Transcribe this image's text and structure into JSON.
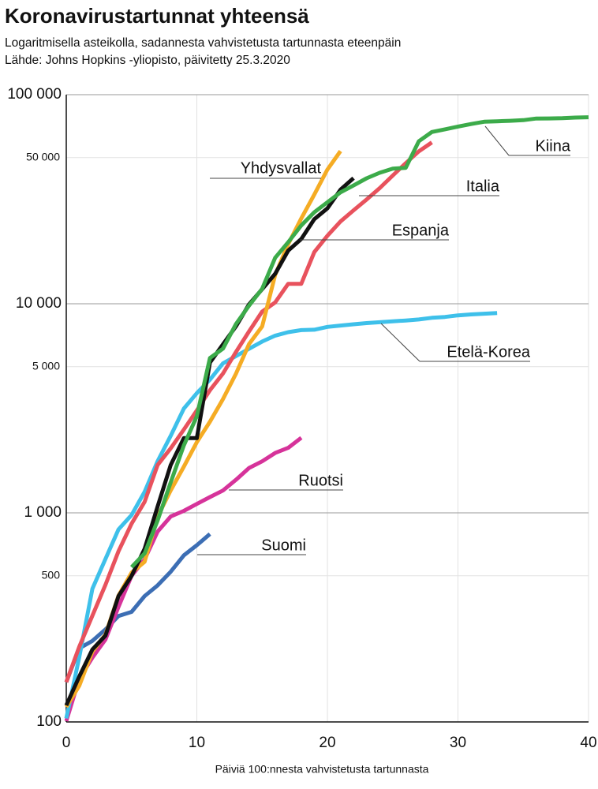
{
  "chart_data": {
    "type": "line",
    "title": "Koronavirustartunnat yhteensä",
    "subtitle": [
      "Logaritmisella asteikolla, sadannesta vahvistetusta tartunnasta eteenpäin",
      "Lähde: Johns Hopkins -yliopisto, päivitetty 25.3.2020"
    ],
    "x_label": "Päiviä 100:nnesta vahvistetusta tartunnasta",
    "log_y": true,
    "grid": true,
    "xlim": [
      0,
      40
    ],
    "xticks": [
      0,
      10,
      20,
      30,
      40
    ],
    "ylim": [
      100,
      100000
    ],
    "yticks": [
      100,
      500,
      {
        "value": 1000,
        "label": "1 000"
      },
      {
        "value": 5000,
        "label": "5 000"
      },
      {
        "value": 10000,
        "label": "10 000"
      },
      {
        "value": 50000,
        "label": "50 000"
      },
      {
        "value": 100000,
        "label": "100 000"
      }
    ],
    "x": [
      0,
      1,
      2,
      3,
      4,
      5,
      6,
      7,
      8,
      9,
      10,
      11,
      12,
      13,
      14,
      15,
      16,
      17,
      18,
      19,
      20,
      21,
      22,
      23,
      24,
      25,
      26,
      27,
      28,
      29,
      30,
      31,
      32,
      33,
      34,
      35,
      36,
      37,
      38,
      39,
      40
    ],
    "series": [
      {
        "name": "Suomi",
        "color": "#3c6eb4",
        "values": [
          155,
          225,
          244,
          277,
          321,
          336,
          400,
          450,
          523,
          626,
          700,
          792,
          null,
          null,
          null,
          null,
          null,
          null,
          null,
          null,
          null,
          null,
          null,
          null,
          null,
          null,
          null,
          null,
          null,
          null,
          null,
          null,
          null,
          null,
          null,
          null,
          null,
          null,
          null,
          null,
          null
        ]
      },
      {
        "name": "Ruotsi",
        "color": "#d6339a",
        "values": [
          101,
          161,
          203,
          248,
          355,
          500,
          599,
          814,
          961,
          1022,
          1103,
          1190,
          1279,
          1439,
          1639,
          1763,
          1934,
          2046,
          2286,
          null,
          null,
          null,
          null,
          null,
          null,
          null,
          null,
          null,
          null,
          null,
          null,
          null,
          null,
          null,
          null,
          null,
          null,
          null,
          null,
          null,
          null
        ]
      },
      {
        "name": "Etelä-Korea",
        "color": "#3ec0ea",
        "values": [
          104,
          204,
          433,
          602,
          833,
          977,
          1261,
          1766,
          2337,
          3150,
          3736,
          4335,
          5186,
          5621,
          6088,
          6593,
          7041,
          7314,
          7478,
          7513,
          7755,
          7869,
          7979,
          8086,
          8162,
          8236,
          8320,
          8413,
          8565,
          8652,
          8799,
          8897,
          8961,
          9037,
          null,
          null,
          null,
          null,
          null,
          null,
          null
        ]
      },
      {
        "name": "Italia",
        "color": "#e8525d",
        "values": [
          155,
          229,
          322,
          453,
          655,
          888,
          1128,
          1694,
          2036,
          2502,
          3089,
          3858,
          4636,
          5883,
          7375,
          9172,
          10149,
          12462,
          12462,
          17660,
          21157,
          24747,
          27980,
          31506,
          35713,
          41035,
          47021,
          53578,
          59138,
          null,
          null,
          null,
          null,
          null,
          null,
          null,
          null,
          null,
          null,
          null,
          null
        ]
      },
      {
        "name": "Yhdysvallat",
        "color": "#f5ac24",
        "values": [
          118,
          149,
          217,
          262,
          402,
          518,
          583,
          959,
          1281,
          1663,
          2179,
          2727,
          3499,
          4632,
          6421,
          7783,
          13747,
          19273,
          25600,
          33276,
          43843,
          53740,
          null,
          null,
          null,
          null,
          null,
          null,
          null,
          null,
          null,
          null,
          null,
          null,
          null,
          null,
          null,
          null,
          null,
          null,
          null
        ]
      },
      {
        "name": "Espanja",
        "color": "#111111",
        "values": [
          120,
          165,
          222,
          259,
          400,
          500,
          673,
          1073,
          1695,
          2277,
          2277,
          5232,
          6391,
          7798,
          9942,
          11748,
          13910,
          17963,
          20410,
          25374,
          28603,
          35136,
          39885,
          null,
          null,
          null,
          null,
          null,
          null,
          null,
          null,
          null,
          null,
          null,
          null,
          null,
          null,
          null,
          null,
          null,
          null
        ]
      },
      {
        "name": "Kiina",
        "color": "#3cab4a",
        "values": [
          null,
          null,
          null,
          null,
          null,
          550,
          640,
          920,
          1400,
          2100,
          2900,
          5500,
          6100,
          8000,
          9800,
          11800,
          16600,
          19700,
          23700,
          27400,
          30600,
          34100,
          36800,
          39800,
          42300,
          44300,
          44700,
          59900,
          66300,
          68300,
          70400,
          72400,
          74200,
          74600,
          75000,
          75500,
          76900,
          77000,
          77200,
          77700,
          78000
        ]
      }
    ]
  }
}
